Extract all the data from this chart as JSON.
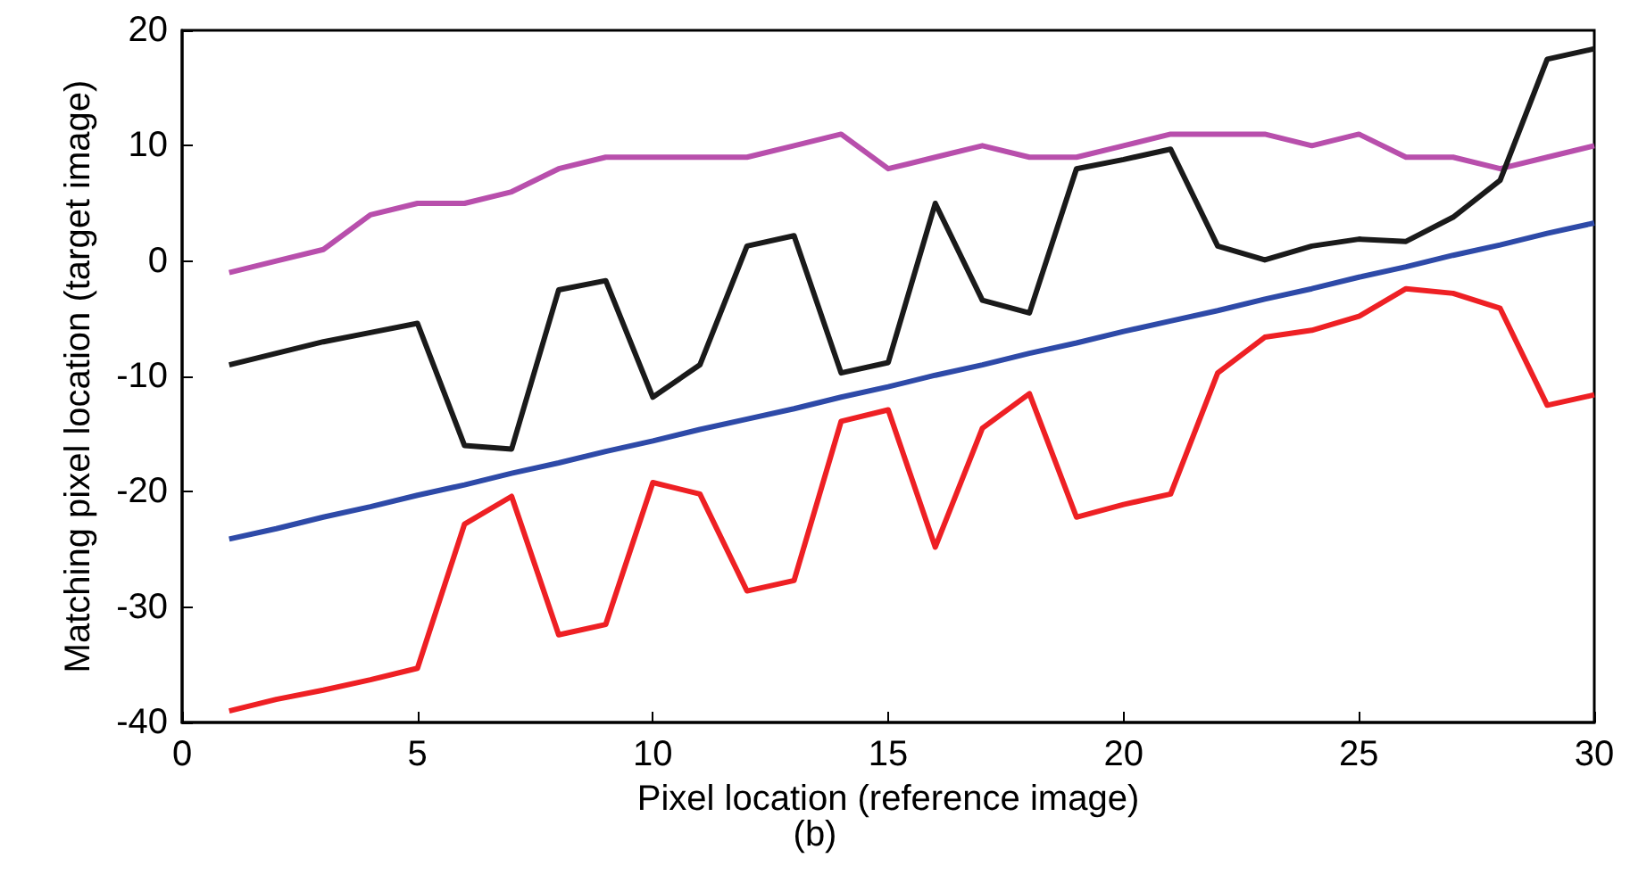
{
  "chart_data": {
    "type": "line",
    "xlabel": "Pixel location (reference image)",
    "ylabel": "Matching pixel location (target image)",
    "annotations": [
      "(b)"
    ],
    "x": [
      1,
      2,
      3,
      4,
      5,
      6,
      7,
      8,
      9,
      10,
      11,
      12,
      13,
      14,
      15,
      16,
      17,
      18,
      19,
      20,
      21,
      22,
      23,
      24,
      25,
      26,
      27,
      28,
      29,
      30
    ],
    "series": [
      {
        "color": "#b84fac",
        "values": [
          -1,
          0,
          1,
          4,
          5,
          5,
          6,
          8,
          9,
          9,
          9,
          9,
          10,
          11,
          8,
          9,
          10,
          9,
          9,
          10,
          11,
          11,
          11,
          10,
          11,
          9,
          9,
          8,
          9,
          10
        ]
      },
      {
        "color": "#1a1a1a",
        "values": [
          -9,
          -8,
          -7,
          -6.2,
          -5.4,
          -16,
          -16.3,
          -2.5,
          -1.7,
          -11.8,
          -9,
          1.3,
          2.2,
          -9.7,
          -8.8,
          5,
          -3.4,
          -4.5,
          8,
          8.8,
          9.7,
          1.3,
          0.1,
          1.3,
          1.9,
          1.7,
          3.8,
          7,
          17.5,
          18.4
        ]
      },
      {
        "color": "#2e4aa8",
        "values": [
          -24.1,
          -23.2,
          -22.2,
          -21.3,
          -20.3,
          -19.4,
          -18.4,
          -17.5,
          -16.5,
          -15.6,
          -14.6,
          -13.7,
          -12.8,
          -11.8,
          -10.9,
          -9.9,
          -9,
          -8,
          -7.1,
          -6.1,
          -5.2,
          -4.3,
          -3.3,
          -2.4,
          -1.4,
          -0.5,
          0.5,
          1.4,
          2.4,
          3.3
        ]
      },
      {
        "color": "#ee2024",
        "values": [
          -39,
          -38,
          -37.2,
          -36.3,
          -35.3,
          -22.8,
          -20.4,
          -32.4,
          -31.5,
          -19.2,
          -20.2,
          -28.6,
          -27.7,
          -13.9,
          -12.9,
          -24.8,
          -14.5,
          -11.5,
          -22.2,
          -21.1,
          -20.2,
          -9.7,
          -6.6,
          -6,
          -4.8,
          -2.4,
          -2.8,
          -4.1,
          -12.5,
          -11.6
        ]
      }
    ],
    "xlim": [
      0,
      30
    ],
    "xticks": [
      0,
      5,
      10,
      15,
      20,
      25,
      30
    ],
    "ylim": [
      -40,
      20
    ],
    "yticks": [
      -40,
      -30,
      -20,
      -10,
      0,
      10,
      20
    ],
    "grid": false,
    "marker": "none",
    "line_style": "solid"
  }
}
